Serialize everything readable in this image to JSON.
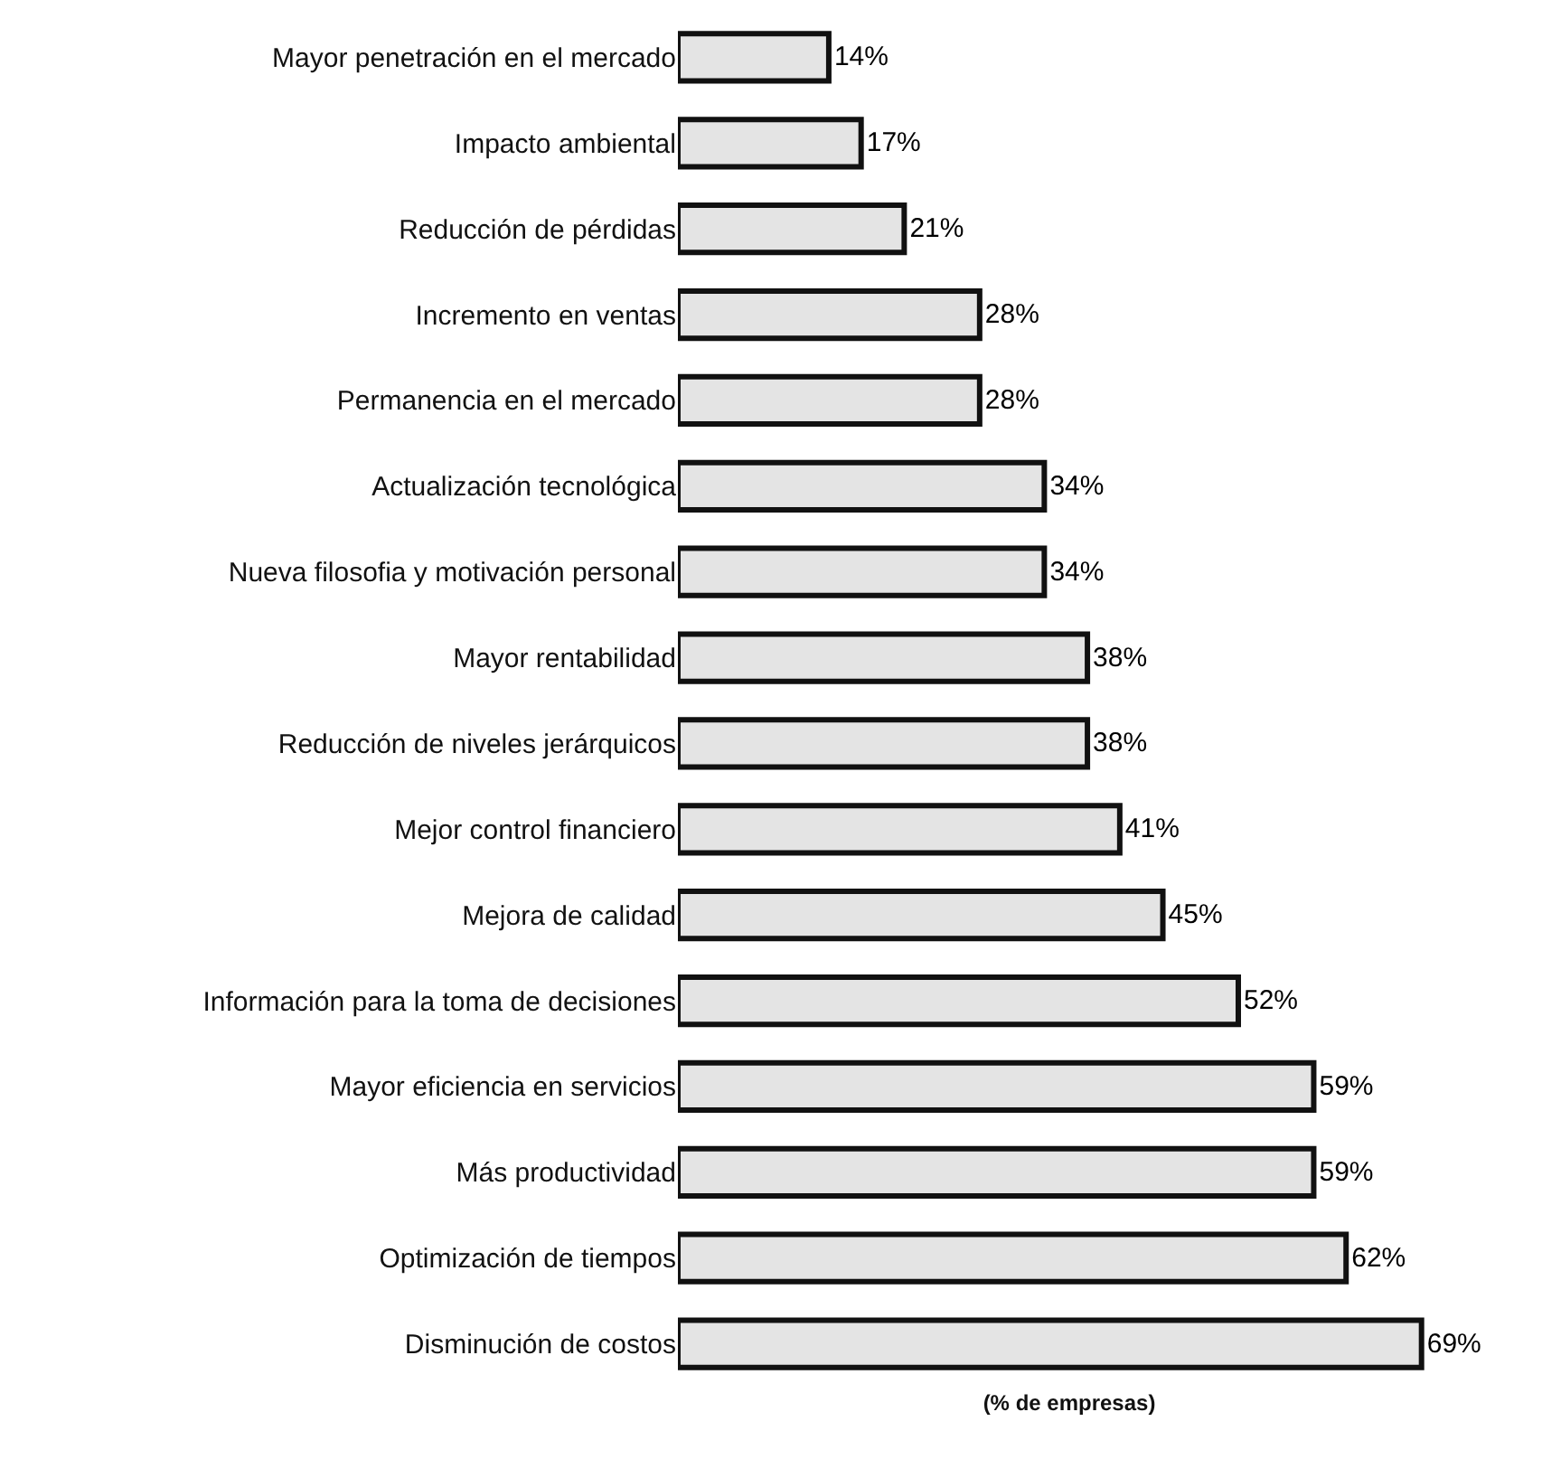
{
  "chart_data": {
    "type": "bar",
    "orientation": "horizontal",
    "xlabel": "(% de empresas)",
    "categories": [
      "Mayor penetración en el mercado",
      "Impacto ambiental",
      "Reducción de pérdidas",
      "Incremento en ventas",
      "Permanencia en el mercado",
      "Actualización tecnológica",
      "Nueva filosofia y motivación personal",
      "Mayor rentabilidad",
      "Reducción de niveles jerárquicos",
      "Mejor control financiero",
      "Mejora de calidad",
      "Información para la toma de decisiones",
      "Mayor eficiencia en servicios",
      "Más productividad",
      "Optimización de tiempos",
      "Disminución de costos"
    ],
    "values": [
      14,
      17,
      21,
      28,
      28,
      34,
      34,
      38,
      38,
      41,
      45,
      52,
      59,
      59,
      62,
      69
    ],
    "value_labels": [
      "14%",
      "17%",
      "21%",
      "28%",
      "28%",
      "34%",
      "34%",
      "38%",
      "38%",
      "41%",
      "45%",
      "52%",
      "59%",
      "59%",
      "62%",
      "69%"
    ],
    "color": "#e4e4e4"
  }
}
